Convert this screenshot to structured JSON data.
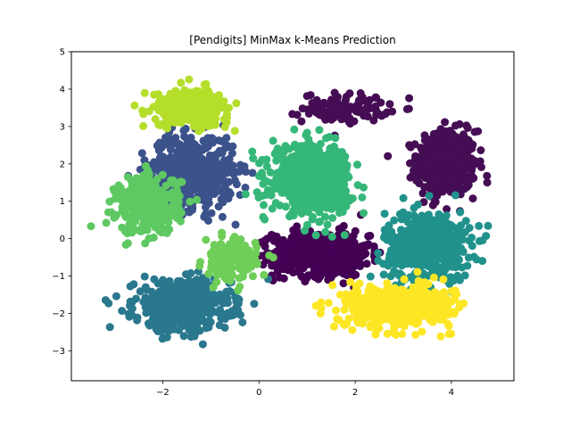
{
  "chart_data": {
    "type": "scatter",
    "title": "[Pendigits] MinMax k-Means Prediction",
    "xlabel": "",
    "ylabel": "",
    "xlim": [
      -3.9,
      5.3
    ],
    "ylim": [
      -3.8,
      5.0
    ],
    "xticks": [
      -2,
      0,
      2,
      4
    ],
    "yticks": [
      -3,
      -2,
      -1,
      0,
      1,
      2,
      3,
      4,
      5
    ],
    "grid": false,
    "legend": "none",
    "marker_radius_px": 4.5,
    "clusters": [
      {
        "color": "#450d54",
        "center": [
          3.9,
          2.0
        ],
        "spread": [
          0.55,
          0.8
        ],
        "count": 520
      },
      {
        "color": "#450d54",
        "center": [
          1.8,
          3.5
        ],
        "spread": [
          0.8,
          0.35
        ],
        "count": 120
      },
      {
        "color": "#440154",
        "center": [
          1.3,
          -0.4
        ],
        "spread": [
          0.9,
          0.55
        ],
        "count": 620
      },
      {
        "color": "#3b528b",
        "center": [
          -1.4,
          1.8
        ],
        "spread": [
          0.8,
          0.9
        ],
        "count": 520
      },
      {
        "color": "#21918c",
        "center": [
          3.5,
          -0.2
        ],
        "spread": [
          0.8,
          0.85
        ],
        "count": 520
      },
      {
        "color": "#2a788e",
        "center": [
          -1.6,
          -1.8
        ],
        "spread": [
          0.9,
          0.6
        ],
        "count": 560
      },
      {
        "color": "#35b779",
        "center": [
          1.1,
          1.6
        ],
        "spread": [
          0.75,
          0.8
        ],
        "count": 620
      },
      {
        "color": "#5ec962",
        "center": [
          -2.3,
          0.9
        ],
        "spread": [
          0.6,
          0.7
        ],
        "count": 360
      },
      {
        "color": "#6ece58",
        "center": [
          -0.6,
          -0.6
        ],
        "spread": [
          0.5,
          0.5
        ],
        "count": 160
      },
      {
        "color": "#b5de2b",
        "center": [
          -1.4,
          3.5
        ],
        "spread": [
          0.7,
          0.45
        ],
        "count": 300
      },
      {
        "color": "#fde725",
        "center": [
          2.9,
          -1.8
        ],
        "spread": [
          1.0,
          0.5
        ],
        "count": 560
      }
    ]
  }
}
